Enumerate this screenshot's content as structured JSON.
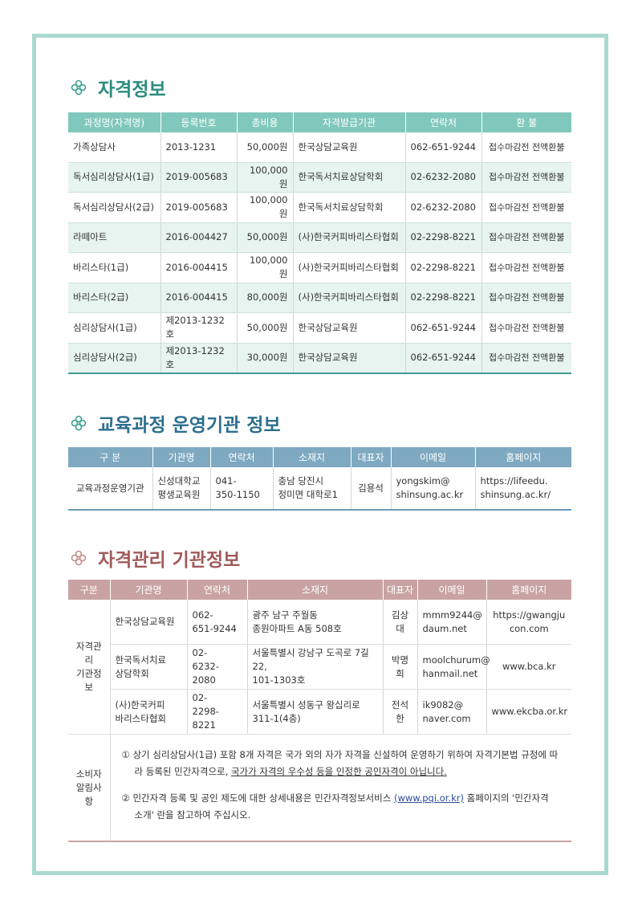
{
  "qualification": {
    "title": "자격정보",
    "headers": [
      "과정명(자격명)",
      "등록번호",
      "총비용",
      "자격발급기관",
      "연락처",
      "환 불"
    ],
    "rows": [
      [
        "가족상담사",
        "2013-1231",
        "50,000원",
        "한국상담교육원",
        "062-651-9244",
        "접수마감전 전액환불"
      ],
      [
        "독서심리상담사(1급)",
        "2019-005683",
        "100,000원",
        "한국독서치료상담학회",
        "02-6232-2080",
        "접수마감전 전액환불"
      ],
      [
        "독서심리상담사(2급)",
        "2019-005683",
        "100,000원",
        "한국독서치료상담학회",
        "02-6232-2080",
        "접수마감전 전액환불"
      ],
      [
        "라떼아트",
        "2016-004427",
        "50,000원",
        "(사)한국커피바리스타협회",
        "02-2298-8221",
        "접수마감전 전액환불"
      ],
      [
        "바리스타(1급)",
        "2016-004415",
        "100,000원",
        "(사)한국커피바리스타협회",
        "02-2298-8221",
        "접수마감전 전액환불"
      ],
      [
        "바리스타(2급)",
        "2016-004415",
        "80,000원",
        "(사)한국커피바리스타협회",
        "02-2298-8221",
        "접수마감전 전액환불"
      ],
      [
        "심리상담사(1급)",
        "제2013-1232호",
        "50,000원",
        "한국상담교육원",
        "062-651-9244",
        "접수마감전 전액환불"
      ],
      [
        "심리상담사(2급)",
        "제2013-1232호",
        "30,000원",
        "한국상담교육원",
        "062-651-9244",
        "접수마감전 전액환불"
      ]
    ]
  },
  "operator": {
    "title": "교육과정 운영기관 정보",
    "headers": [
      "구 분",
      "기관명",
      "연락처",
      "소재지",
      "대표자",
      "이메일",
      "홈페이지"
    ],
    "rows": [
      [
        "교육과정운영기관",
        "신성대학교\n평생교육원",
        "041-\n350-1150",
        "충남 당진시\n정미면 대학로1",
        "김용석",
        "yongskim@\nshinsung.ac.kr",
        "https://lifeedu.\nshinsung.ac.kr/"
      ]
    ]
  },
  "management": {
    "title": "자격관리 기관정보",
    "headers": [
      "구분",
      "기관명",
      "연락처",
      "소재지",
      "대표자",
      "이메일",
      "홈페이지"
    ],
    "group_label": "자격관리\n기관정보",
    "rows": [
      [
        "한국상담교육원",
        "062-\n651-9244",
        "광주 남구 주월동\n종원아파트 A동 508호",
        "김상대",
        "mmm9244@\ndaum.net",
        "https://gwangju\ncon.com"
      ],
      [
        "한국독서치료\n상담학회",
        "02-\n6232-2080",
        "서울특별시 강남구 도곡로 7길 22,\n101-1303호",
        "박명희",
        "moolchurum@\nhanmail.net",
        "www.bca.kr"
      ],
      [
        "(사)한국커피\n바리스타협회",
        "02-\n2298-8221",
        "서울특별시 성동구 왕십리로\n311-1(4층)",
        "전석한",
        "ik9082@\nnaver.com",
        "www.ekcba.or.kr"
      ]
    ],
    "notice": {
      "label": "소비자\n알림사항",
      "items": [
        {
          "text": "① 상기 심리상담사(1급) 포함 8개 자격은 국가 외의 자가 자격을 신설하여 운영하기 위하여 자격기본법 규정에 따라 등록된 민간자격으로, ",
          "emphasis": "국가가 자격의 우수성 등을 인정한 공인자격이 아닙니다."
        },
        {
          "text": "② 민간자격 등록 및 공인 제도에 대한 상세내용은 민간자격정보서비스 ",
          "emphasis": "(www.pqi.or.kr)",
          "rest": " 홈페이지의 '민간자격 소개' 란을 참고하여 주십시오."
        }
      ]
    }
  }
}
